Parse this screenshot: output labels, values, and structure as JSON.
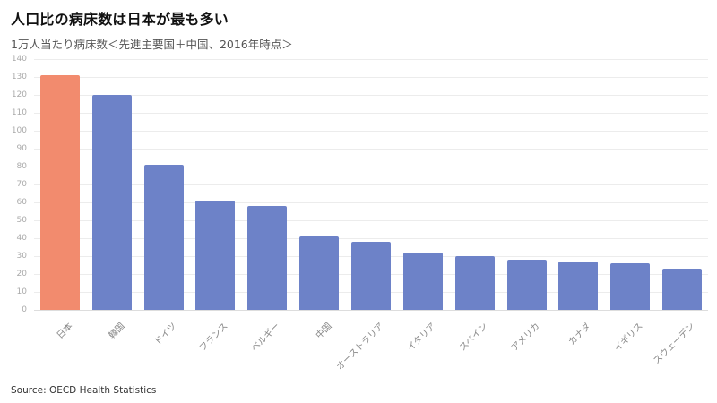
{
  "header": {
    "title": "人口比の病床数は日本が最も多い",
    "subtitle": "1万人当たり病床数＜先進主要国＋中国、2016年時点＞"
  },
  "footer": {
    "source": "Source: OECD Health Statistics"
  },
  "chart_data": {
    "type": "bar",
    "title": "人口比の病床数は日本が最も多い",
    "subtitle": "1万人当たり病床数＜先進主要国＋中国、2016年時点＞",
    "source": "Source: OECD Health Statistics",
    "categories": [
      "日本",
      "韓国",
      "ドイツ",
      "フランス",
      "ベルギー",
      "中国",
      "オーストラリア",
      "イタリア",
      "スペイン",
      "アメリカ",
      "カナダ",
      "イギリス",
      "スウェーデン"
    ],
    "values": [
      131,
      120,
      81,
      61,
      58,
      41,
      38,
      32,
      30,
      28,
      27,
      26,
      23
    ],
    "highlight_index": 0,
    "colors": {
      "highlight": "#F28B6E",
      "default": "#6D82C8"
    },
    "xlabel": "",
    "ylabel": "",
    "ylim": [
      0,
      140
    ],
    "ytick_step": 10,
    "grid": true,
    "legend": "none"
  }
}
